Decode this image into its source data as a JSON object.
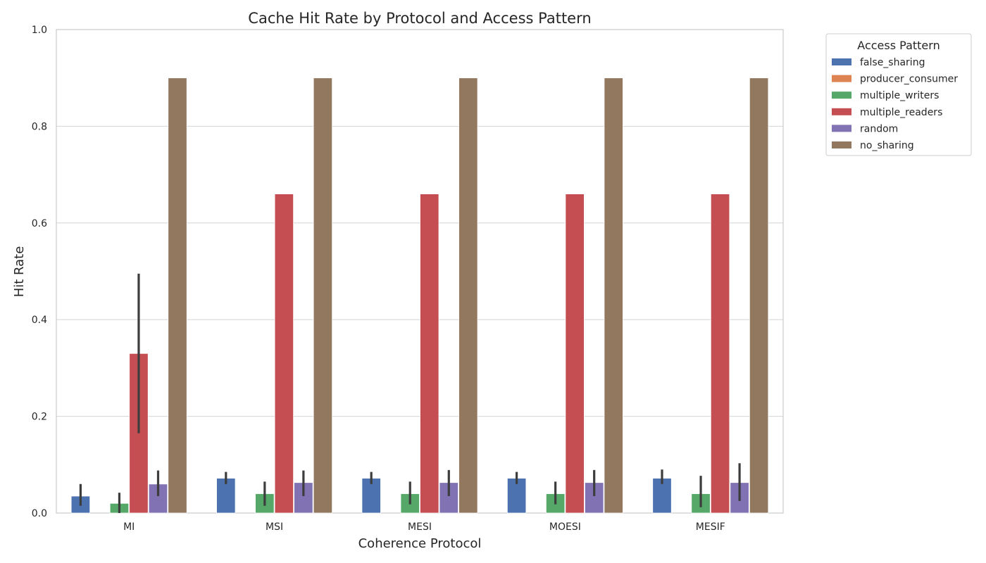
{
  "chart_data": {
    "type": "bar",
    "title": "Cache Hit Rate by Protocol and Access Pattern",
    "xlabel": "Coherence Protocol",
    "ylabel": "Hit Rate",
    "ylim": [
      0,
      1.0
    ],
    "yticks": [
      "0.0",
      "0.2",
      "0.4",
      "0.6",
      "0.8",
      "1.0"
    ],
    "categories": [
      "MI",
      "MSI",
      "MESI",
      "MOESI",
      "MESIF"
    ],
    "grid": "horizontal",
    "legend": {
      "title": "Access Pattern",
      "placement": "outside-top-right"
    },
    "series": [
      {
        "name": "false_sharing",
        "color": "#4c72b0",
        "values": [
          0.035,
          0.072,
          0.072,
          0.072,
          0.072
        ],
        "ci": [
          [
            0.015,
            0.06
          ],
          [
            0.06,
            0.085
          ],
          [
            0.06,
            0.085
          ],
          [
            0.06,
            0.085
          ],
          [
            0.06,
            0.09
          ]
        ]
      },
      {
        "name": "producer_consumer",
        "color": "#dd8452",
        "values": [
          0.0,
          0.0,
          0.0,
          0.0,
          0.0
        ],
        "ci": [
          null,
          null,
          null,
          null,
          null
        ]
      },
      {
        "name": "multiple_writers",
        "color": "#55a868",
        "values": [
          0.02,
          0.04,
          0.04,
          0.04,
          0.04
        ],
        "ci": [
          [
            0.0,
            0.042
          ],
          [
            0.015,
            0.065
          ],
          [
            0.018,
            0.065
          ],
          [
            0.018,
            0.065
          ],
          [
            0.012,
            0.077
          ]
        ]
      },
      {
        "name": "multiple_readers",
        "color": "#c44e52",
        "values": [
          0.33,
          0.66,
          0.66,
          0.66,
          0.66
        ],
        "ci": [
          [
            0.165,
            0.495
          ],
          null,
          null,
          null,
          null
        ]
      },
      {
        "name": "random",
        "color": "#8172b3",
        "values": [
          0.06,
          0.063,
          0.063,
          0.063,
          0.063
        ],
        "ci": [
          [
            0.035,
            0.088
          ],
          [
            0.035,
            0.088
          ],
          [
            0.035,
            0.089
          ],
          [
            0.035,
            0.089
          ],
          [
            0.025,
            0.103
          ]
        ]
      },
      {
        "name": "no_sharing",
        "color": "#937860",
        "values": [
          0.9,
          0.9,
          0.9,
          0.9,
          0.9
        ],
        "ci": [
          null,
          null,
          null,
          null,
          null
        ]
      }
    ]
  }
}
